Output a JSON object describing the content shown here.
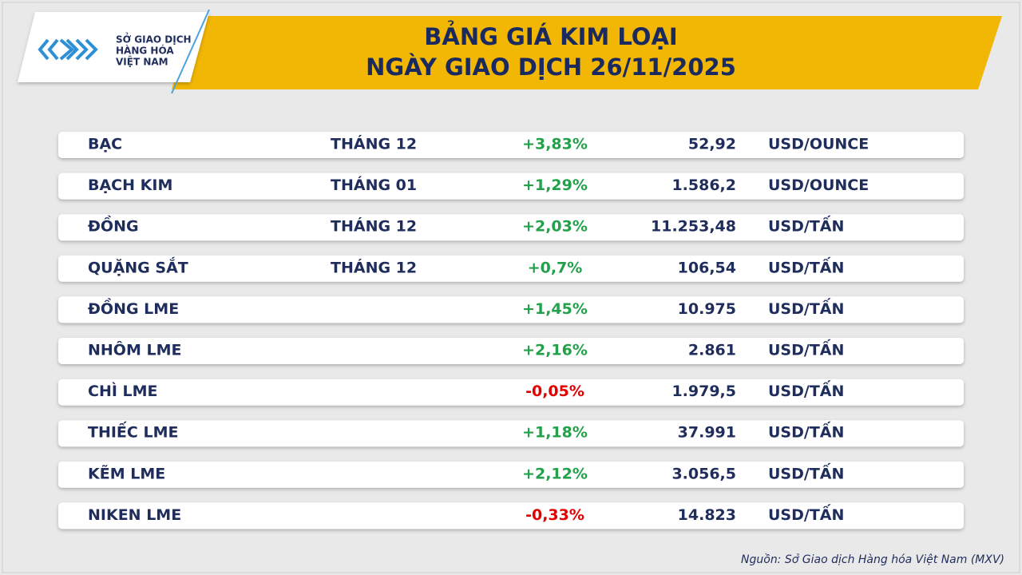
{
  "header": {
    "logo_lines": [
      "SỞ GIAO DỊCH",
      "HÀNG HÓA",
      "VIỆT NAM"
    ],
    "title_lines": [
      "BẢNG GIÁ KIM LOẠI",
      "NGÀY GIAO DỊCH 26/11/2025"
    ]
  },
  "table": {
    "rows": [
      [
        "BẠC",
        "THÁNG 12",
        "+3,83%",
        "52,92",
        "USD/OUNCE"
      ],
      [
        "BẠCH KIM",
        "THÁNG 01",
        "+1,29%",
        "1.586,2",
        "USD/OUNCE"
      ],
      [
        "ĐỒNG",
        "THÁNG 12",
        "+2,03%",
        "11.253,48",
        "USD/TẤN"
      ],
      [
        "QUẶNG SẮT",
        "THÁNG 12",
        "+0,7%",
        "106,54",
        "USD/TẤN"
      ],
      [
        "ĐỒNG LME",
        null,
        "+1,45%",
        "10.975",
        "USD/TẤN"
      ],
      [
        "NHÔM LME",
        null,
        "+2,16%",
        "2.861",
        "USD/TẤN"
      ],
      [
        "CHÌ LME",
        null,
        "-0,05%",
        "1.979,5",
        "USD/TẤN"
      ],
      [
        "THIẾC LME",
        null,
        "+1,18%",
        "37.991",
        "USD/TẤN"
      ],
      [
        "KẼM LME",
        null,
        "+2,12%",
        "3.056,5",
        "USD/TẤN"
      ],
      [
        "NIKEN LME",
        null,
        "-0,33%",
        "14.823",
        "USD/TẤN"
      ]
    ]
  },
  "footer": {
    "source": "Nguồn: Sở Giao dịch Hàng hóa Việt Nam (MXV)"
  }
}
